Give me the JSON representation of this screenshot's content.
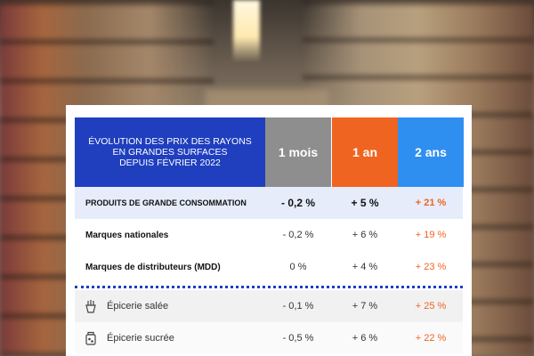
{
  "table": {
    "title": "Évolution des prix des rayons\nen grandes surfaces\ndepuis février 2022",
    "columns": [
      "1 mois",
      "1 an",
      "2 ans"
    ],
    "colors": {
      "title": "#1f3fbf",
      "col_1m": "#8e8e8e",
      "col_1y": "#f06421",
      "col_2y": "#2f8ff0"
    },
    "rows": [
      {
        "label": "PRODUITS DE GRANDE CONSOMMATION",
        "m1": "- 0,2 %",
        "y1": "+ 5 %",
        "y2": "+ 21 %"
      },
      {
        "label": "Marques nationales",
        "m1": "- 0,2 %",
        "y1": "+ 6 %",
        "y2": "+ 19 %"
      },
      {
        "label": "Marques de distributeurs (MDD)",
        "m1": "0 %",
        "y1": "+ 4 %",
        "y2": "+ 23 %"
      },
      {
        "label": "Épicerie salée",
        "icon": "fries-icon",
        "m1": "- 0,1 %",
        "y1": "+ 7 %",
        "y2": "+ 25 %"
      },
      {
        "label": "Épicerie sucrée",
        "icon": "candy-jar-icon",
        "m1": "- 0,5 %",
        "y1": "+ 6 %",
        "y2": "+ 22 %"
      }
    ]
  }
}
